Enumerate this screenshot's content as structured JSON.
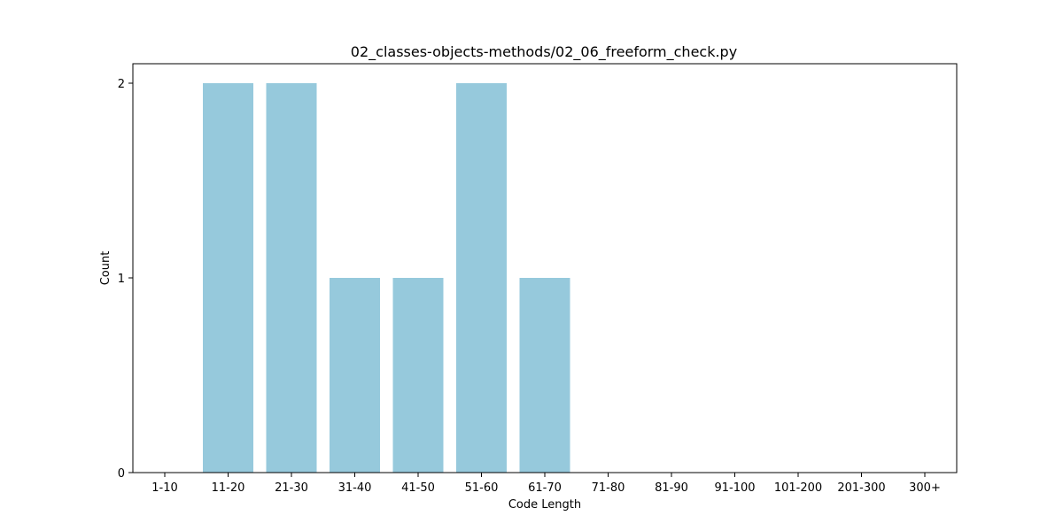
{
  "chart_data": {
    "type": "bar",
    "title": "02_classes-objects-methods/02_06_freeform_check.py",
    "xlabel": "Code Length",
    "ylabel": "Count",
    "categories": [
      "1-10",
      "11-20",
      "21-30",
      "31-40",
      "41-50",
      "51-60",
      "61-70",
      "71-80",
      "81-90",
      "91-100",
      "101-200",
      "201-300",
      "300+"
    ],
    "values": [
      0,
      2,
      2,
      1,
      1,
      2,
      1,
      0,
      0,
      0,
      0,
      0,
      0
    ],
    "ylim": [
      0,
      2.1
    ],
    "yticks": [
      0,
      1,
      2
    ],
    "grid": false,
    "bar_color": "#96c9dc"
  }
}
